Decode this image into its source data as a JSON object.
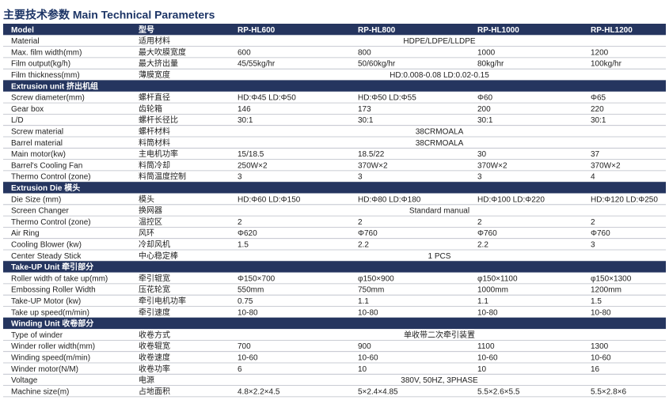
{
  "header": {
    "title": "主要技术参数 Main Technical Parameters"
  },
  "table": {
    "columns": [
      "Model",
      "型号",
      "RP-HL600",
      "RP-HL800",
      "RP-HL1000",
      "RP-HL1200"
    ],
    "rows": [
      {
        "en": "Material",
        "zh": "适用材料",
        "merged": "HDPE/LDPE/LLDPE"
      },
      {
        "en": "Max. film width(mm)",
        "zh": "最大吹膜宽度",
        "values": [
          "600",
          "800",
          "1000",
          "1200"
        ]
      },
      {
        "en": "Film output(kg/h)",
        "zh": "最大挤出量",
        "values": [
          "45/55kg/hr",
          "50/60kg/hr",
          "80kg/hr",
          "100kg/hr"
        ]
      },
      {
        "en": "Film thickness(mm)",
        "zh": "薄膜宽度",
        "merged": "HD:0.008-0.08  LD:0.02-0.15"
      },
      {
        "section": "Extrusion unit 挤出机组"
      },
      {
        "en": "Screw diameter(mm)",
        "zh": "螺杆直径",
        "values": [
          "HD:Φ45 LD:Φ50",
          "HD:Φ50 LD:Φ55",
          "Φ60",
          "Φ65"
        ]
      },
      {
        "en": "Gear box",
        "zh": "齿轮箱",
        "values": [
          "146",
          "173",
          "200",
          "220"
        ]
      },
      {
        "en": "L/D",
        "zh": "螺杆长径比",
        "values": [
          "30:1",
          "30:1",
          "30:1",
          "30:1"
        ]
      },
      {
        "en": "Screw material",
        "zh": "螺杆材料",
        "merged": "38CRMOALA"
      },
      {
        "en": "Barrel material",
        "zh": "料筒材料",
        "merged": "38CRMOALA"
      },
      {
        "en": "Main motor(kw)",
        "zh": "主电机功率",
        "values": [
          "15/18.5",
          "18.5/22",
          "30",
          "37"
        ]
      },
      {
        "en": "Barrel's Cooling Fan",
        "zh": "料筒冷却",
        "values": [
          "250W×2",
          "370W×2",
          "370W×2",
          "370W×2"
        ]
      },
      {
        "en": "Thermo Control (zone)",
        "zh": "料筒温度控制",
        "values": [
          "3",
          "3",
          "3",
          "4"
        ]
      },
      {
        "section": "Extrusion Die 模头"
      },
      {
        "en": "Die Size (mm)",
        "zh": "模头",
        "values": [
          "HD:Φ60  LD:Φ150",
          "HD:Φ80  LD:Φ180",
          "HD:Φ100  LD:Φ220",
          "HD:Φ120  LD:Φ250"
        ]
      },
      {
        "en": "Screen Changer",
        "zh": "换网器",
        "merged": "Standard manual"
      },
      {
        "en": "Thermo Control (zone)",
        "zh": "温控区",
        "values": [
          "2",
          "2",
          "2",
          "2"
        ]
      },
      {
        "en": "Air Ring",
        "zh": "风环",
        "values": [
          "Φ620",
          "Φ760",
          "Φ760",
          "Φ760"
        ]
      },
      {
        "en": "Cooling Blower (kw)",
        "zh": "冷却风机",
        "values": [
          "1.5",
          "2.2",
          "2.2",
          "3"
        ]
      },
      {
        "en": "Center Steady Stick",
        "zh": "中心稳定棒",
        "merged": "1 PCS"
      },
      {
        "section": "Take-UP Unit 牵引部分"
      },
      {
        "en": "Roller width of take up(mm)",
        "zh": "牵引辊宽",
        "values": [
          "Φ150×700",
          "φ150×900",
          "φ150×1100",
          "φ150×1300"
        ]
      },
      {
        "en": "Embossing Roller Width",
        "zh": "压花轮宽",
        "values": [
          "550mm",
          "750mm",
          "1000mm",
          "1200mm"
        ]
      },
      {
        "en": "Take-UP Motor (kw)",
        "zh": "牵引电机功率",
        "values": [
          "0.75",
          "1.1",
          "1.1",
          "1.5"
        ]
      },
      {
        "en": "Take up speed(m/min)",
        "zh": "牵引速度",
        "values": [
          "10-80",
          "10-80",
          "10-80",
          "10-80"
        ]
      },
      {
        "section": "Winding Unit 收卷部分"
      },
      {
        "en": "Type of winder",
        "zh": "收卷方式",
        "merged": "单收带二次牵引装置"
      },
      {
        "en": "Winder roller width(mm)",
        "zh": "收卷辊宽",
        "values": [
          "700",
          "900",
          "1100",
          "1300"
        ]
      },
      {
        "en": "Winding speed(m/min)",
        "zh": "收卷速度",
        "values": [
          "10-60",
          "10-60",
          "10-60",
          "10-60"
        ]
      },
      {
        "en": "Winder motor(N/M)",
        "zh": "收卷功率",
        "values": [
          "6",
          "10",
          "10",
          "16"
        ]
      },
      {
        "en": "Voltage",
        "zh": "电源",
        "merged": "380V, 50HZ, 3PHASE"
      },
      {
        "en": "Machine size(m)",
        "zh": "占地面积",
        "values": [
          "4.8×2.2×4.5",
          "5×2.4×4.85",
          "5.5×2.6×5.5",
          "5.5×2.8×6"
        ]
      }
    ]
  }
}
